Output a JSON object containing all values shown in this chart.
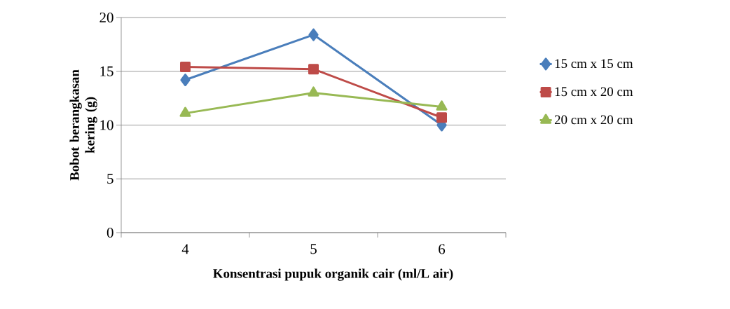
{
  "chart_data": {
    "type": "line",
    "xlabel": "Konsentrasi pupuk organik cair (ml/L air)",
    "ylabel": "Bobot berangkasan kering (g)",
    "categories": [
      "4",
      "5",
      "6"
    ],
    "series": [
      {
        "name": "15 cm x 15 cm",
        "color": "#4a7ebb",
        "marker": "diamond",
        "values": [
          14.2,
          18.4,
          10.0
        ]
      },
      {
        "name": "15 cm x 20 cm",
        "color": "#be4b48",
        "marker": "square",
        "values": [
          15.4,
          15.2,
          10.7
        ]
      },
      {
        "name": "20 cm x 20 cm",
        "color": "#98b954",
        "marker": "triangle",
        "values": [
          11.1,
          13.0,
          11.7
        ]
      }
    ],
    "ylim": [
      0,
      20
    ],
    "yticks": [
      0,
      5,
      10,
      15,
      20
    ],
    "grid": "y",
    "legend": "right"
  }
}
